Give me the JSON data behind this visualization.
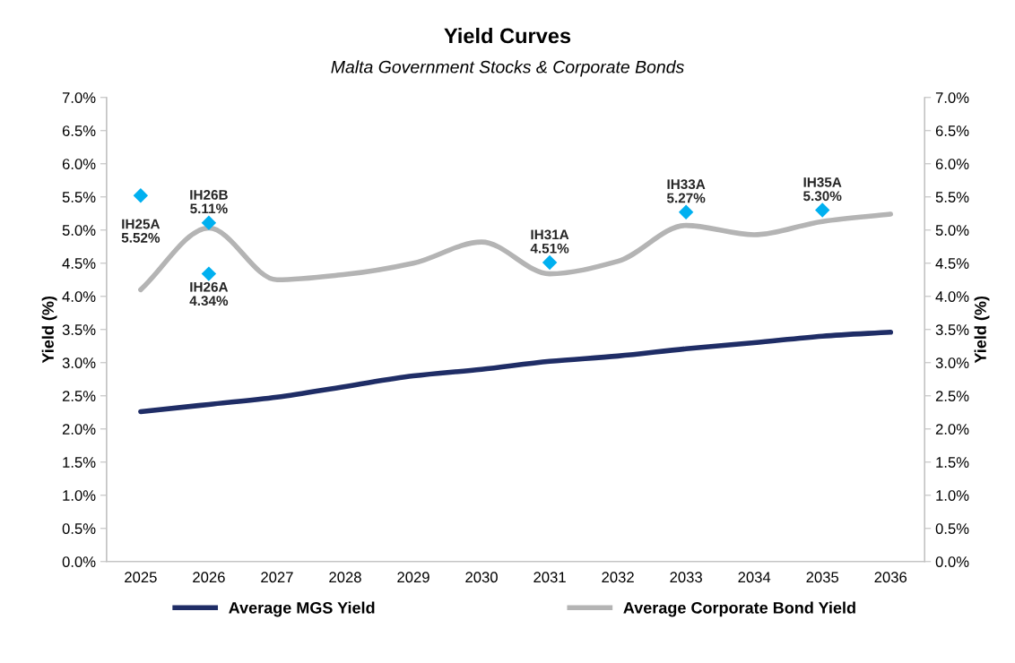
{
  "chart_data": {
    "type": "line",
    "title": "Yield Curves",
    "subtitle": "Malta Government Stocks & Corporate Bonds",
    "ylabel": "Yield (%)",
    "y2label": "Yield (%)",
    "categories": [
      "2025",
      "2026",
      "2027",
      "2028",
      "2029",
      "2030",
      "2031",
      "2032",
      "2033",
      "2034",
      "2035",
      "2036"
    ],
    "series": [
      {
        "name": "Average MGS Yield",
        "color": "#1f2d66",
        "values": [
          2.26,
          2.37,
          2.48,
          2.64,
          2.8,
          2.9,
          3.02,
          3.1,
          3.21,
          3.3,
          3.4,
          3.46
        ]
      },
      {
        "name": "Average Corporate Bond Yield",
        "color": "#b4b4b4",
        "values": [
          4.1,
          5.03,
          4.25,
          4.33,
          4.5,
          4.82,
          4.34,
          4.53,
          5.07,
          4.93,
          5.13,
          5.24
        ]
      },
      {
        "type": "scatter",
        "color": "#00b0f0",
        "marker": "diamond",
        "values": [
          5.52,
          5.11,
          null,
          null,
          null,
          null,
          4.51,
          null,
          5.27,
          null,
          5.3,
          null
        ]
      },
      {
        "type": "scatter",
        "color": "#00b0f0",
        "marker": "diamond",
        "values": [
          null,
          4.34,
          null,
          null,
          null,
          null,
          null,
          null,
          null,
          null,
          null,
          null
        ]
      }
    ],
    "annotations": [
      {
        "text": "IH25A\n5.52%",
        "x": "2025",
        "y": 5.52
      },
      {
        "text": "IH26B\n5.11%",
        "x": "2026",
        "y": 5.11
      },
      {
        "text": "IH26A\n4.34%",
        "x": "2026",
        "y": 4.34
      },
      {
        "text": "IH31A\n4.51%",
        "x": "2031",
        "y": 4.51
      },
      {
        "text": "IH33A\n5.27%",
        "x": "2033",
        "y": 5.27
      },
      {
        "text": "IH35A\n5.30%",
        "x": "2035",
        "y": 5.3
      }
    ],
    "ylim": [
      0,
      7
    ],
    "yticks": [
      {
        "value": 0,
        "label": "0.0%"
      },
      {
        "value": 0.5,
        "label": "0.5%"
      },
      {
        "value": 1,
        "label": "1.0%"
      },
      {
        "value": 1.5,
        "label": "1.5%"
      },
      {
        "value": 2,
        "label": "2.0%"
      },
      {
        "value": 2.5,
        "label": "2.5%"
      },
      {
        "value": 3,
        "label": "3.0%"
      },
      {
        "value": 3.5,
        "label": "3.5%"
      },
      {
        "value": 4,
        "label": "4.0%"
      },
      {
        "value": 4.5,
        "label": "4.5%"
      },
      {
        "value": 5,
        "label": "5.0%"
      },
      {
        "value": 5.5,
        "label": "5.5%"
      },
      {
        "value": 6,
        "label": "6.0%"
      },
      {
        "value": 6.5,
        "label": "6.5%"
      },
      {
        "value": 7,
        "label": "7.0%"
      }
    ],
    "y2lim": [
      0,
      7
    ],
    "y2ticks": [
      {
        "value": 0,
        "label": "0.0%"
      },
      {
        "value": 0.5,
        "label": "0.5%"
      },
      {
        "value": 1,
        "label": "1.0%"
      },
      {
        "value": 1.5,
        "label": "1.5%"
      },
      {
        "value": 2,
        "label": "2.0%"
      },
      {
        "value": 2.5,
        "label": "2.5%"
      },
      {
        "value": 3,
        "label": "3.0%"
      },
      {
        "value": 3.5,
        "label": "3.5%"
      },
      {
        "value": 4,
        "label": "4.0%"
      },
      {
        "value": 4.5,
        "label": "4.5%"
      },
      {
        "value": 5,
        "label": "5.0%"
      },
      {
        "value": 5.5,
        "label": "5.5%"
      },
      {
        "value": 6,
        "label": "6.0%"
      },
      {
        "value": 6.5,
        "label": "6.5%"
      },
      {
        "value": 7,
        "label": "7.0%"
      }
    ],
    "grid": false,
    "legend": "bottom",
    "line_style": "solid"
  }
}
